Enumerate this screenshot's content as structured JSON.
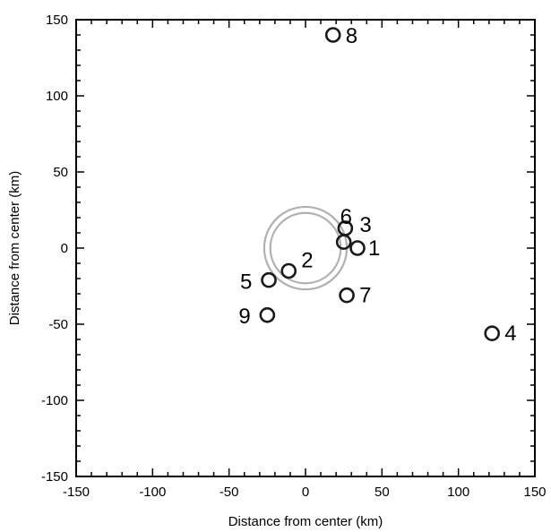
{
  "chart_data": {
    "type": "scatter",
    "xlabel": "Distance from center (km)",
    "ylabel": "Distance from center (km)",
    "xlim": [
      -150,
      150
    ],
    "ylim": [
      -150,
      150
    ],
    "xticks": [
      -150,
      -100,
      -50,
      0,
      50,
      100,
      150
    ],
    "yticks": [
      -150,
      -100,
      -50,
      0,
      50,
      100,
      150
    ],
    "xtick_labels": [
      "-150",
      "-100",
      "-50",
      "0",
      "50",
      "100",
      "150"
    ],
    "ytick_labels": [
      "-150",
      "-100",
      "-50",
      "0",
      "50",
      "100",
      "150"
    ],
    "grid": false,
    "points": [
      {
        "label": "1",
        "x": 34,
        "y": 0
      },
      {
        "label": "2",
        "x": -11,
        "y": -15
      },
      {
        "label": "3",
        "x": 26,
        "y": 13
      },
      {
        "label": "4",
        "x": 122,
        "y": -56
      },
      {
        "label": "5",
        "x": -24,
        "y": -21
      },
      {
        "label": "6",
        "x": 25,
        "y": 4
      },
      {
        "label": "7",
        "x": 27,
        "y": -31
      },
      {
        "label": "8",
        "x": 18,
        "y": 140
      },
      {
        "label": "9",
        "x": -25,
        "y": -44
      }
    ],
    "rings": [
      {
        "x": 0,
        "y": 0,
        "r": 27
      },
      {
        "x": 0,
        "y": 0,
        "r": 23
      }
    ],
    "colors": {
      "points": "#1a1a1a",
      "rings": "#b0b0b0",
      "axes": "#000000"
    }
  }
}
